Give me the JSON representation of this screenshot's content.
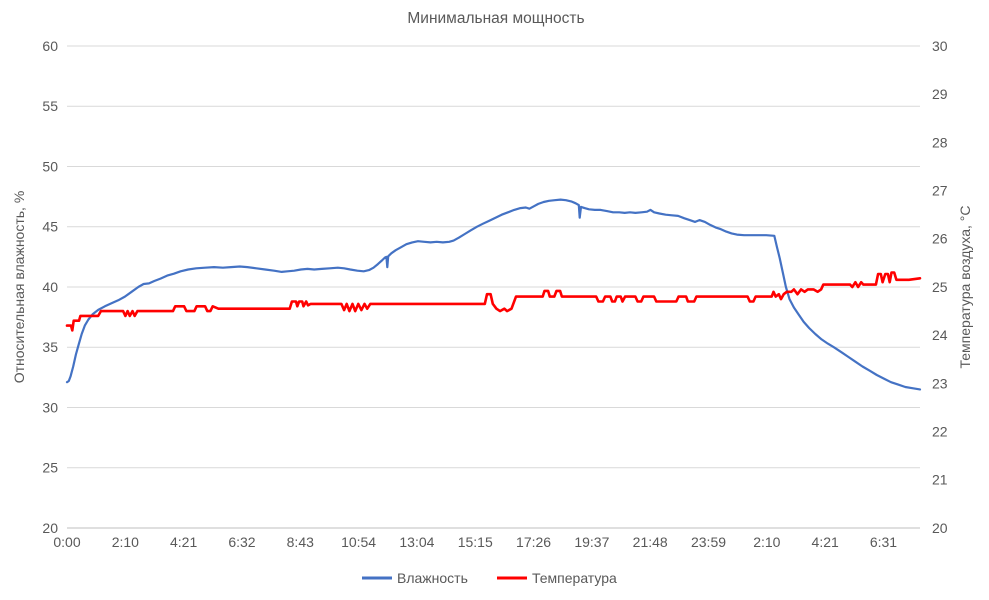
{
  "chart_data": {
    "type": "line",
    "title": "Минимальная мощность",
    "grid": "horizontal",
    "legend_position": "bottom",
    "colors": {
      "text": "#595959",
      "gridline": "#D9D9D9",
      "axis_line": "#BFBFBF",
      "background": "#FFFFFF",
      "humidity": "#4472C4",
      "temperature": "#FF0000"
    },
    "y_left": {
      "label": "Относительная влажность, %",
      "min": 20,
      "max": 60,
      "step": 5
    },
    "y_right": {
      "label": "Температура воздуха, °C",
      "min": 20,
      "max": 30,
      "step": 1
    },
    "x": {
      "tick_labels": [
        "0:00",
        "2:10",
        "4:21",
        "6:32",
        "8:43",
        "10:54",
        "13:04",
        "15:15",
        "17:26",
        "19:37",
        "21:48",
        "23:59",
        "2:10",
        "4:21",
        "6:31"
      ],
      "tick_interval_minutes": 130.93,
      "total_minutes": 1915
    },
    "legend": [
      {
        "label": "Влажность",
        "color": "#4472C4"
      },
      {
        "label": "Температура",
        "color": "#FF0000"
      }
    ],
    "series": [
      {
        "name": "Влажность",
        "axis": "left",
        "color": "#4472C4",
        "stroke_width": 2.2,
        "points": [
          [
            0,
            32.1
          ],
          [
            4,
            32.2
          ],
          [
            8,
            32.6
          ],
          [
            14,
            33.4
          ],
          [
            20,
            34.4
          ],
          [
            26,
            35.2
          ],
          [
            33,
            36.1
          ],
          [
            40,
            36.8
          ],
          [
            48,
            37.3
          ],
          [
            58,
            37.75
          ],
          [
            70,
            38.1
          ],
          [
            85,
            38.4
          ],
          [
            100,
            38.65
          ],
          [
            115,
            38.9
          ],
          [
            130,
            39.2
          ],
          [
            145,
            39.6
          ],
          [
            160,
            40.0
          ],
          [
            172,
            40.25
          ],
          [
            184,
            40.3
          ],
          [
            196,
            40.5
          ],
          [
            210,
            40.7
          ],
          [
            225,
            40.95
          ],
          [
            240,
            41.1
          ],
          [
            255,
            41.3
          ],
          [
            272,
            41.45
          ],
          [
            290,
            41.55
          ],
          [
            310,
            41.6
          ],
          [
            330,
            41.65
          ],
          [
            350,
            41.6
          ],
          [
            368,
            41.65
          ],
          [
            388,
            41.7
          ],
          [
            405,
            41.65
          ],
          [
            425,
            41.55
          ],
          [
            445,
            41.45
          ],
          [
            465,
            41.35
          ],
          [
            482,
            41.25
          ],
          [
            495,
            41.3
          ],
          [
            510,
            41.35
          ],
          [
            525,
            41.45
          ],
          [
            540,
            41.5
          ],
          [
            555,
            41.45
          ],
          [
            572,
            41.5
          ],
          [
            590,
            41.55
          ],
          [
            608,
            41.6
          ],
          [
            622,
            41.55
          ],
          [
            636,
            41.45
          ],
          [
            652,
            41.35
          ],
          [
            666,
            41.3
          ],
          [
            678,
            41.4
          ],
          [
            688,
            41.6
          ],
          [
            698,
            41.9
          ],
          [
            707,
            42.2
          ],
          [
            714,
            42.45
          ],
          [
            717,
            42.5
          ],
          [
            719,
            41.65
          ],
          [
            721,
            42.55
          ],
          [
            728,
            42.8
          ],
          [
            738,
            43.05
          ],
          [
            750,
            43.3
          ],
          [
            762,
            43.55
          ],
          [
            775,
            43.7
          ],
          [
            788,
            43.8
          ],
          [
            802,
            43.75
          ],
          [
            816,
            43.7
          ],
          [
            830,
            43.75
          ],
          [
            844,
            43.7
          ],
          [
            858,
            43.75
          ],
          [
            868,
            43.85
          ],
          [
            880,
            44.1
          ],
          [
            893,
            44.4
          ],
          [
            906,
            44.7
          ],
          [
            920,
            45.0
          ],
          [
            934,
            45.25
          ],
          [
            948,
            45.5
          ],
          [
            962,
            45.75
          ],
          [
            976,
            46.0
          ],
          [
            990,
            46.2
          ],
          [
            1004,
            46.4
          ],
          [
            1018,
            46.55
          ],
          [
            1030,
            46.6
          ],
          [
            1038,
            46.5
          ],
          [
            1048,
            46.7
          ],
          [
            1058,
            46.9
          ],
          [
            1070,
            47.05
          ],
          [
            1082,
            47.15
          ],
          [
            1095,
            47.2
          ],
          [
            1108,
            47.25
          ],
          [
            1120,
            47.2
          ],
          [
            1132,
            47.1
          ],
          [
            1142,
            46.95
          ],
          [
            1149,
            46.8
          ],
          [
            1151,
            45.75
          ],
          [
            1154,
            46.65
          ],
          [
            1162,
            46.55
          ],
          [
            1172,
            46.45
          ],
          [
            1185,
            46.4
          ],
          [
            1198,
            46.4
          ],
          [
            1212,
            46.3
          ],
          [
            1226,
            46.2
          ],
          [
            1240,
            46.2
          ],
          [
            1252,
            46.15
          ],
          [
            1264,
            46.2
          ],
          [
            1276,
            46.15
          ],
          [
            1290,
            46.2
          ],
          [
            1302,
            46.25
          ],
          [
            1310,
            46.4
          ],
          [
            1318,
            46.2
          ],
          [
            1330,
            46.1
          ],
          [
            1344,
            46.0
          ],
          [
            1358,
            45.95
          ],
          [
            1372,
            45.9
          ],
          [
            1386,
            45.7
          ],
          [
            1398,
            45.55
          ],
          [
            1410,
            45.4
          ],
          [
            1420,
            45.55
          ],
          [
            1432,
            45.4
          ],
          [
            1444,
            45.15
          ],
          [
            1456,
            44.95
          ],
          [
            1468,
            44.8
          ],
          [
            1480,
            44.6
          ],
          [
            1492,
            44.45
          ],
          [
            1504,
            44.35
          ],
          [
            1520,
            44.3
          ],
          [
            1545,
            44.3
          ],
          [
            1570,
            44.3
          ],
          [
            1588,
            44.25
          ],
          [
            1594,
            43.3
          ],
          [
            1600,
            42.4
          ],
          [
            1607,
            41.2
          ],
          [
            1614,
            40.0
          ],
          [
            1622,
            39.0
          ],
          [
            1632,
            38.3
          ],
          [
            1643,
            37.7
          ],
          [
            1654,
            37.1
          ],
          [
            1666,
            36.6
          ],
          [
            1680,
            36.1
          ],
          [
            1694,
            35.65
          ],
          [
            1708,
            35.3
          ],
          [
            1722,
            35.0
          ],
          [
            1738,
            34.6
          ],
          [
            1754,
            34.2
          ],
          [
            1770,
            33.8
          ],
          [
            1786,
            33.4
          ],
          [
            1802,
            33.05
          ],
          [
            1818,
            32.7
          ],
          [
            1834,
            32.4
          ],
          [
            1850,
            32.1
          ],
          [
            1866,
            31.9
          ],
          [
            1882,
            31.7
          ],
          [
            1898,
            31.6
          ],
          [
            1915,
            31.5
          ]
        ]
      },
      {
        "name": "Температура",
        "axis": "right",
        "color": "#FF0000",
        "stroke_width": 2.6,
        "points": [
          [
            0,
            24.2
          ],
          [
            9,
            24.2
          ],
          [
            12,
            24.1
          ],
          [
            15,
            24.3
          ],
          [
            27,
            24.3
          ],
          [
            30,
            24.4
          ],
          [
            70,
            24.4
          ],
          [
            76,
            24.5
          ],
          [
            126,
            24.5
          ],
          [
            131,
            24.4
          ],
          [
            136,
            24.5
          ],
          [
            141,
            24.4
          ],
          [
            147,
            24.5
          ],
          [
            152,
            24.4
          ],
          [
            158,
            24.5
          ],
          [
            238,
            24.5
          ],
          [
            243,
            24.6
          ],
          [
            263,
            24.6
          ],
          [
            268,
            24.5
          ],
          [
            286,
            24.5
          ],
          [
            291,
            24.6
          ],
          [
            310,
            24.6
          ],
          [
            315,
            24.5
          ],
          [
            322,
            24.5
          ],
          [
            327,
            24.6
          ],
          [
            340,
            24.55
          ],
          [
            500,
            24.55
          ],
          [
            505,
            24.7
          ],
          [
            514,
            24.7
          ],
          [
            517,
            24.6
          ],
          [
            521,
            24.7
          ],
          [
            528,
            24.7
          ],
          [
            531,
            24.6
          ],
          [
            537,
            24.7
          ],
          [
            541,
            24.62
          ],
          [
            547,
            24.65
          ],
          [
            616,
            24.65
          ],
          [
            622,
            24.52
          ],
          [
            628,
            24.65
          ],
          [
            634,
            24.5
          ],
          [
            641,
            24.65
          ],
          [
            647,
            24.5
          ],
          [
            654,
            24.65
          ],
          [
            661,
            24.52
          ],
          [
            668,
            24.65
          ],
          [
            674,
            24.55
          ],
          [
            681,
            24.65
          ],
          [
            730,
            24.65
          ],
          [
            938,
            24.65
          ],
          [
            943,
            24.85
          ],
          [
            951,
            24.85
          ],
          [
            956,
            24.65
          ],
          [
            964,
            24.55
          ],
          [
            972,
            24.5
          ],
          [
            982,
            24.55
          ],
          [
            988,
            24.5
          ],
          [
            998,
            24.55
          ],
          [
            1008,
            24.8
          ],
          [
            1068,
            24.8
          ],
          [
            1072,
            24.92
          ],
          [
            1080,
            24.92
          ],
          [
            1084,
            24.8
          ],
          [
            1094,
            24.8
          ],
          [
            1099,
            24.92
          ],
          [
            1107,
            24.92
          ],
          [
            1111,
            24.8
          ],
          [
            1188,
            24.8
          ],
          [
            1193,
            24.7
          ],
          [
            1203,
            24.7
          ],
          [
            1208,
            24.8
          ],
          [
            1220,
            24.8
          ],
          [
            1224,
            24.7
          ],
          [
            1230,
            24.7
          ],
          [
            1234,
            24.8
          ],
          [
            1243,
            24.8
          ],
          [
            1247,
            24.7
          ],
          [
            1253,
            24.8
          ],
          [
            1276,
            24.8
          ],
          [
            1281,
            24.7
          ],
          [
            1289,
            24.7
          ],
          [
            1294,
            24.8
          ],
          [
            1318,
            24.8
          ],
          [
            1323,
            24.7
          ],
          [
            1368,
            24.7
          ],
          [
            1373,
            24.8
          ],
          [
            1390,
            24.8
          ],
          [
            1394,
            24.7
          ],
          [
            1408,
            24.7
          ],
          [
            1413,
            24.8
          ],
          [
            1528,
            24.8
          ],
          [
            1533,
            24.7
          ],
          [
            1541,
            24.7
          ],
          [
            1546,
            24.8
          ],
          [
            1582,
            24.8
          ],
          [
            1586,
            24.9
          ],
          [
            1591,
            24.8
          ],
          [
            1598,
            24.85
          ],
          [
            1603,
            24.75
          ],
          [
            1609,
            24.85
          ],
          [
            1616,
            24.9
          ],
          [
            1626,
            24.9
          ],
          [
            1632,
            24.95
          ],
          [
            1640,
            24.85
          ],
          [
            1648,
            24.95
          ],
          [
            1656,
            24.9
          ],
          [
            1663,
            24.95
          ],
          [
            1676,
            24.95
          ],
          [
            1685,
            24.9
          ],
          [
            1693,
            24.95
          ],
          [
            1698,
            25.05
          ],
          [
            1758,
            25.05
          ],
          [
            1763,
            25.0
          ],
          [
            1770,
            25.1
          ],
          [
            1776,
            25.0
          ],
          [
            1783,
            25.1
          ],
          [
            1788,
            25.05
          ],
          [
            1816,
            25.05
          ],
          [
            1821,
            25.27
          ],
          [
            1827,
            25.27
          ],
          [
            1831,
            25.1
          ],
          [
            1837,
            25.27
          ],
          [
            1843,
            25.27
          ],
          [
            1847,
            25.1
          ],
          [
            1851,
            25.3
          ],
          [
            1857,
            25.3
          ],
          [
            1862,
            25.15
          ],
          [
            1890,
            25.15
          ],
          [
            1915,
            25.18
          ]
        ]
      }
    ]
  }
}
